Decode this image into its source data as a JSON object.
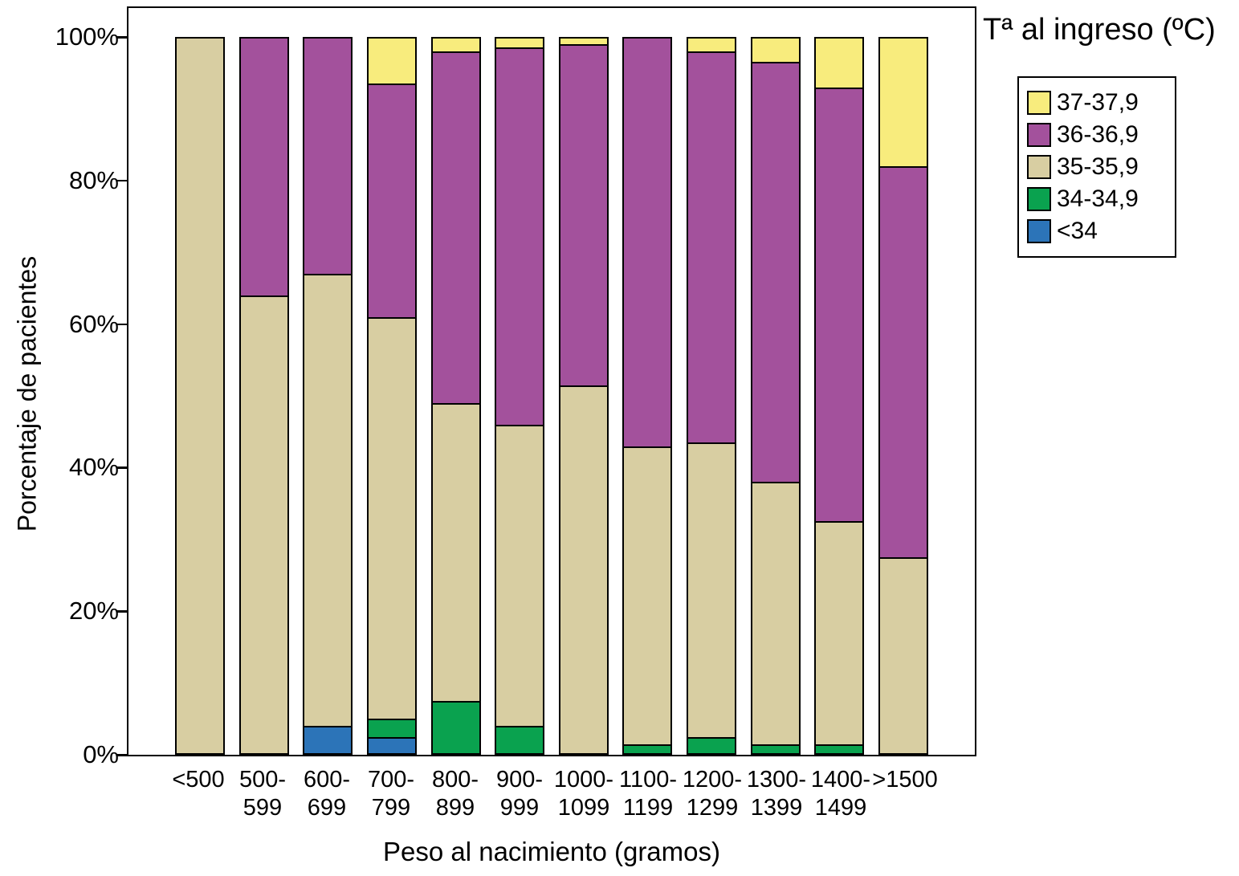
{
  "chart_data": {
    "type": "bar",
    "stacked": true,
    "percent": true,
    "title": "",
    "xlabel": "Peso al nacimiento (gramos)",
    "ylabel": "Porcentaje de pacientes",
    "ylim": [
      0,
      100
    ],
    "yticks_desc": [
      "100%",
      "80%",
      "60%",
      "40%",
      "20%",
      "0%"
    ],
    "legend_title": "Tª al ingreso (ºC)",
    "legend_position": "upper right outside",
    "grid": false,
    "categories": [
      "<500",
      "500-599",
      "600-699",
      "700-799",
      "800-899",
      "900-999",
      "1000-1099",
      "1100-1199",
      "1200-1299",
      "1300-1399",
      "1400-1499",
      ">1500"
    ],
    "category_lines": [
      [
        "<500"
      ],
      [
        "500-",
        "599"
      ],
      [
        "600-",
        "699"
      ],
      [
        "700-",
        "799"
      ],
      [
        "800-",
        "899"
      ],
      [
        "900-",
        "999"
      ],
      [
        "1000-",
        "1099"
      ],
      [
        "1100-",
        "1199"
      ],
      [
        "1200-",
        "1299"
      ],
      [
        "1300-",
        "1399"
      ],
      [
        "1400-",
        "1499"
      ],
      [
        ">1500"
      ]
    ],
    "series": [
      {
        "name": "37-37,9",
        "color": "#F8EC7D",
        "values": [
          0,
          0,
          0,
          6.5,
          2,
          1.5,
          1,
          0,
          2,
          3.5,
          7,
          18
        ]
      },
      {
        "name": "36-36,9",
        "color": "#A3519C",
        "values": [
          0,
          36,
          33,
          32.5,
          49,
          52.5,
          47.5,
          57,
          54.5,
          58.5,
          60.5,
          54.5
        ]
      },
      {
        "name": "35-35,9",
        "color": "#D8CEA2",
        "values": [
          100,
          64,
          63,
          56,
          41.5,
          42,
          51.5,
          41.5,
          41,
          36.5,
          31,
          27.5
        ]
      },
      {
        "name": "34-34,9",
        "color": "#0AA24F",
        "values": [
          0,
          0,
          0,
          2.5,
          7.5,
          4,
          0,
          1.5,
          2.5,
          1.5,
          1.5,
          0
        ]
      },
      {
        "name": "<34",
        "color": "#2C74B8",
        "values": [
          0,
          0,
          4,
          2.5,
          0,
          0,
          0,
          0,
          0,
          0,
          0,
          0
        ]
      }
    ]
  }
}
